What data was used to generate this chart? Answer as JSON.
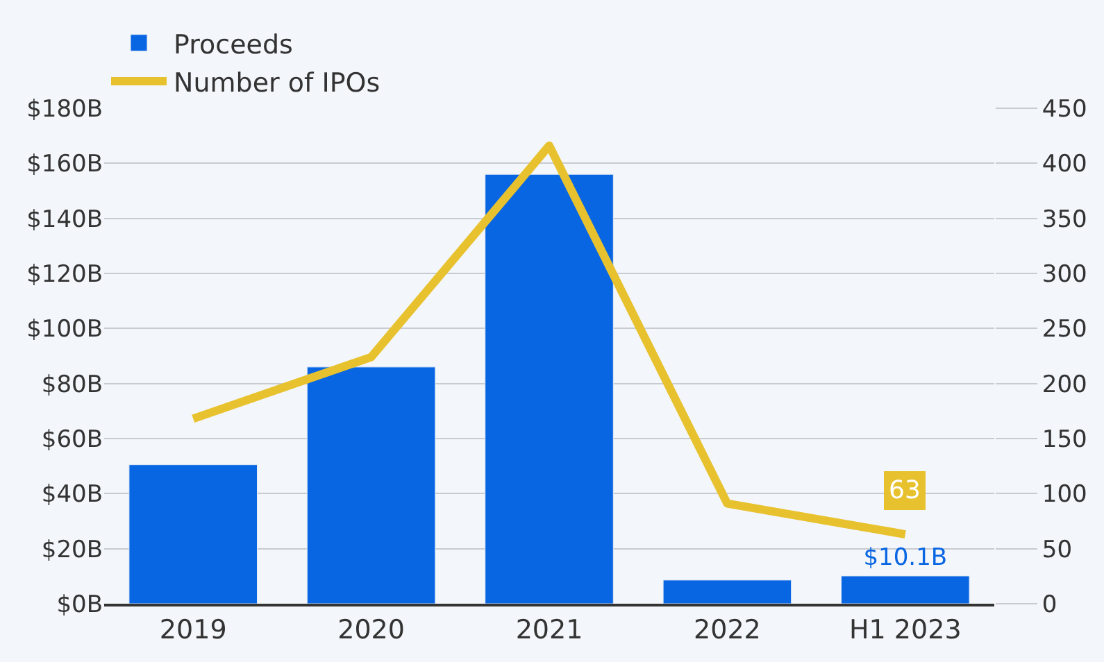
{
  "chart_data": {
    "type": "bar",
    "categories": [
      "2019",
      "2020",
      "2021",
      "2022",
      "H1 2023"
    ],
    "series": [
      {
        "name": "Proceeds",
        "color": "#0866e3",
        "values": [
          50.5,
          86,
          156,
          8.6,
          10.1
        ],
        "value_labels": [
          null,
          null,
          null,
          null,
          "$10.1B"
        ]
      },
      {
        "name": "Number of IPOs",
        "type": "line",
        "axis": "y2",
        "color": "#e8c22e",
        "values": [
          168,
          224,
          416,
          91,
          63
        ],
        "value_labels": [
          null,
          null,
          null,
          null,
          "63"
        ]
      }
    ],
    "ylim": [
      0,
      180
    ],
    "yticks": [
      {
        "value": 0,
        "label": "$0B"
      },
      {
        "value": 20,
        "label": "$20B"
      },
      {
        "value": 40,
        "label": "$40B"
      },
      {
        "value": 60,
        "label": "$60B"
      },
      {
        "value": 80,
        "label": "$80B"
      },
      {
        "value": 100,
        "label": "$100B"
      },
      {
        "value": 120,
        "label": "$120B"
      },
      {
        "value": 140,
        "label": "$140B"
      },
      {
        "value": 160,
        "label": "$160B"
      },
      {
        "value": 180,
        "label": "$180B"
      }
    ],
    "y2lim": [
      0,
      450
    ],
    "y2ticks": [
      0,
      50,
      100,
      150,
      200,
      250,
      300,
      350,
      400,
      450
    ],
    "grid": "y",
    "legend": "top",
    "marker": "none",
    "line_style": "solid"
  }
}
